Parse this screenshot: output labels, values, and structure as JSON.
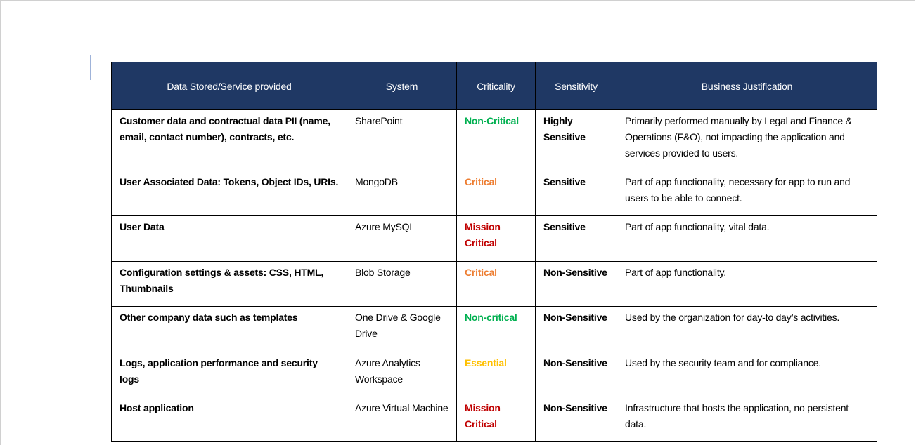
{
  "table": {
    "header": [
      "Data Stored/Service provided",
      "System",
      "Criticality",
      "Sensitivity",
      "Business Justification"
    ],
    "rows": [
      {
        "cells": [
          "Customer data and contractual data PII (name, email, contact number), contracts, etc.",
          "SharePoint",
          "Non-Critical",
          "Highly Sensitive",
          "Primarily performed manually by Legal and Finance & Operations (F&O), not impacting the application and services provided to users."
        ],
        "criticality_color": "#00b050"
      },
      {
        "cells": [
          "User Associated Data: Tokens, Object IDs, URIs.",
          "MongoDB",
          "Critical",
          "Sensitive",
          "Part of app functionality, necessary for app to run and users to be able to connect."
        ],
        "criticality_color": "#ed7d31"
      },
      {
        "cells": [
          "User Data",
          "Azure MySQL",
          "Mission Critical",
          "Sensitive",
          "Part of app functionality, vital data."
        ],
        "criticality_color": "#c00000"
      },
      {
        "cells": [
          "Configuration settings & assets: CSS, HTML, Thumbnails",
          "Blob Storage",
          "Critical",
          "Non-Sensitive",
          "Part of app functionality."
        ],
        "criticality_color": "#ed7d31"
      },
      {
        "cells": [
          "Other company data such as templates",
          "One Drive & Google Drive",
          "Non-critical",
          "Non-Sensitive",
          "Used by the organization for day-to day’s activities."
        ],
        "criticality_color": "#00b050"
      },
      {
        "cells": [
          "Logs, application performance and security logs",
          "Azure Analytics Workspace",
          "Essential",
          "Non-Sensitive",
          "Used by the security team and for compliance."
        ],
        "criticality_color": "#ffc000"
      },
      {
        "cells": [
          "Host application",
          "Azure Virtual Machine",
          "Mission Critical",
          "Non-Sensitive",
          "Infrastructure that hosts the application, no persistent data."
        ],
        "criticality_color": "#c00000"
      }
    ]
  }
}
